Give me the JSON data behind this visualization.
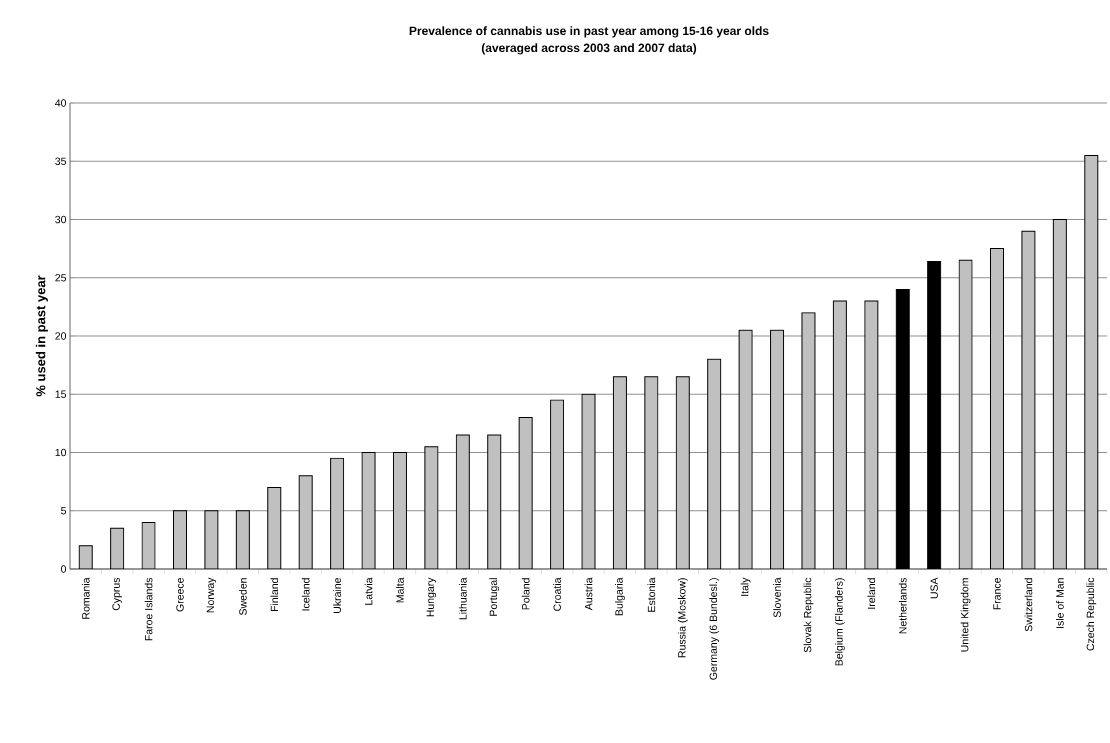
{
  "chart_data": {
    "type": "bar",
    "title": "Prevalence of cannabis use in past year among 15-16 year olds",
    "subtitle": "(averaged across 2003 and 2007 data)",
    "ylabel": "% used in past year",
    "categories": [
      "Romania",
      "Cyprus",
      "Faroe Islands",
      "Greece",
      "Norway",
      "Sweden",
      "Finland",
      "Iceland",
      "Ukraine",
      "Latvia",
      "Malta",
      "Hungary",
      "Lithuania",
      "Portugal",
      "Poland",
      "Croatia",
      "Austria",
      "Bulgaria",
      "Estonia",
      "Russia (Moskow)",
      "Germany (6 Bundesl.)",
      "Italy",
      "Slovenia",
      "Slovak Republic",
      "Belgium (Flanders)",
      "Ireland",
      "Netherlands",
      "USA",
      "United Kingdom",
      "France",
      "Switzerland",
      "Isle of Man",
      "Czech Republic"
    ],
    "values": [
      2,
      3.5,
      4,
      5,
      5,
      5,
      7,
      8,
      9.5,
      10,
      10,
      10.5,
      11.5,
      11.5,
      13,
      14.5,
      15,
      16.5,
      16.5,
      16.5,
      18,
      20.5,
      20.5,
      22,
      23,
      23,
      24,
      26.4,
      26.5,
      27.5,
      29,
      30,
      35.5
    ],
    "colors": [
      "#c0c0c0",
      "#c0c0c0",
      "#c0c0c0",
      "#c0c0c0",
      "#c0c0c0",
      "#c0c0c0",
      "#c0c0c0",
      "#c0c0c0",
      "#c0c0c0",
      "#c0c0c0",
      "#c0c0c0",
      "#c0c0c0",
      "#c0c0c0",
      "#c0c0c0",
      "#c0c0c0",
      "#c0c0c0",
      "#c0c0c0",
      "#c0c0c0",
      "#c0c0c0",
      "#c0c0c0",
      "#c0c0c0",
      "#c0c0c0",
      "#c0c0c0",
      "#c0c0c0",
      "#c0c0c0",
      "#c0c0c0",
      "#000000",
      "#000000",
      "#c0c0c0",
      "#c0c0c0",
      "#c0c0c0",
      "#c0c0c0",
      "#c0c0c0"
    ],
    "ylim": [
      0,
      40
    ],
    "yticks": [
      0,
      5,
      10,
      15,
      20,
      25,
      30,
      35,
      40
    ],
    "grid": "y"
  }
}
